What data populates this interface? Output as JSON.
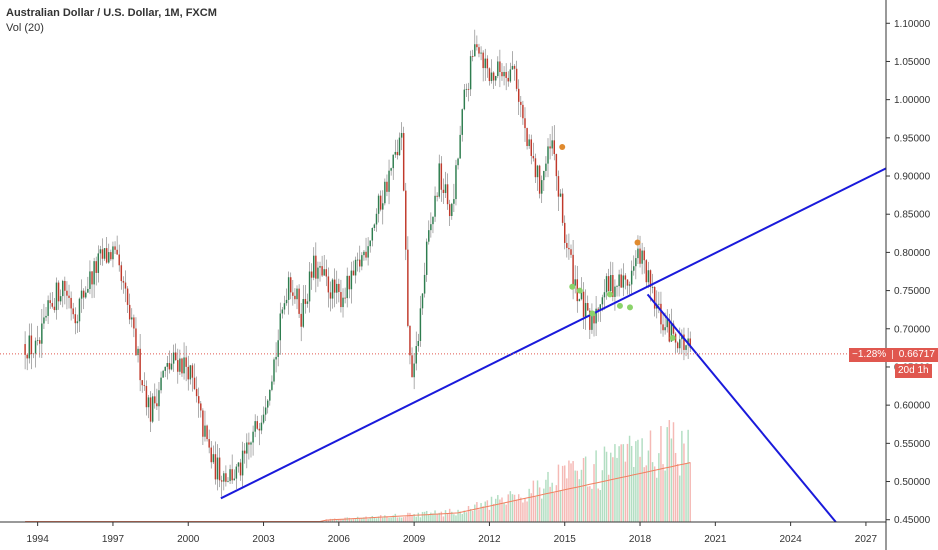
{
  "legend": {
    "title": "Australian Dollar / U.S. Dollar, 1M, FXCM",
    "indicator": "Vol (20)"
  },
  "price_tag": {
    "change": "−1.28%",
    "price": "0.66717",
    "countdown": "20d 1h"
  },
  "colors": {
    "up": "#2e7d4f",
    "down": "#c0392b",
    "trendline": "#1a1adb",
    "price_line": "#e0574f",
    "vol_ma": "#f08060",
    "vol_up": "#9fd6b3",
    "vol_down": "#f2a7a3"
  },
  "chart_data": {
    "type": "line",
    "title": "Australian Dollar / U.S. Dollar, 1M, FXCM",
    "x_tick_labels": [
      "1994",
      "1997",
      "2000",
      "2003",
      "2006",
      "2009",
      "2012",
      "2015",
      "2018",
      "2021",
      "2024",
      "2027"
    ],
    "y_tick_labels": [
      "0.45000",
      "0.50000",
      "0.55000",
      "0.60000",
      "0.65000",
      "0.70000",
      "0.75000",
      "0.80000",
      "0.85000",
      "0.90000",
      "0.95000",
      "1.00000",
      "1.05000",
      "1.10000"
    ],
    "xlim": [
      1992.5,
      2027.8
    ],
    "ylim": [
      0.447,
      1.12
    ],
    "grid": false,
    "series": [
      {
        "values": [
          [
            1993.5,
            0.68
          ],
          [
            1994.0,
            0.67
          ],
          [
            1994.5,
            0.73
          ],
          [
            1995.0,
            0.76
          ],
          [
            1995.5,
            0.72
          ],
          [
            1996.0,
            0.76
          ],
          [
            1996.5,
            0.79
          ],
          [
            1997.0,
            0.8
          ],
          [
            1997.5,
            0.74
          ],
          [
            1998.0,
            0.66
          ],
          [
            1998.5,
            0.59
          ],
          [
            1999.0,
            0.64
          ],
          [
            1999.5,
            0.66
          ],
          [
            2000.0,
            0.65
          ],
          [
            2000.5,
            0.58
          ],
          [
            2001.0,
            0.52
          ],
          [
            2001.5,
            0.51
          ],
          [
            2002.0,
            0.51
          ],
          [
            2002.5,
            0.55
          ],
          [
            2003.0,
            0.6
          ],
          [
            2003.5,
            0.67
          ],
          [
            2004.0,
            0.77
          ],
          [
            2004.5,
            0.72
          ],
          [
            2005.0,
            0.78
          ],
          [
            2005.5,
            0.76
          ],
          [
            2006.0,
            0.74
          ],
          [
            2006.5,
            0.76
          ],
          [
            2007.0,
            0.8
          ],
          [
            2007.5,
            0.85
          ],
          [
            2008.0,
            0.9
          ],
          [
            2008.5,
            0.95
          ],
          [
            2008.8,
            0.66
          ],
          [
            2009.0,
            0.64
          ],
          [
            2009.5,
            0.8
          ],
          [
            2010.0,
            0.9
          ],
          [
            2010.5,
            0.85
          ],
          [
            2011.0,
            1.0
          ],
          [
            2011.5,
            1.08
          ],
          [
            2012.0,
            1.03
          ],
          [
            2012.5,
            1.04
          ],
          [
            2013.0,
            1.04
          ],
          [
            2013.5,
            0.94
          ],
          [
            2014.0,
            0.89
          ],
          [
            2014.5,
            0.94
          ],
          [
            2015.0,
            0.82
          ],
          [
            2015.5,
            0.75
          ],
          [
            2016.0,
            0.7
          ],
          [
            2016.5,
            0.75
          ],
          [
            2017.0,
            0.76
          ],
          [
            2017.5,
            0.76
          ],
          [
            2018.0,
            0.8
          ],
          [
            2018.5,
            0.74
          ],
          [
            2019.0,
            0.7
          ],
          [
            2019.5,
            0.69
          ],
          [
            2020.0,
            0.67
          ]
        ]
      }
    ],
    "trendlines": [
      {
        "from": [
          2001.3,
          0.478
        ],
        "to": [
          2027.8,
          0.91
        ]
      },
      {
        "from": [
          2018.3,
          0.745
        ],
        "to": [
          2025.8,
          0.447
        ]
      }
    ],
    "markers": [
      {
        "x": 2014.9,
        "y": 0.938,
        "color": "#e08a2e"
      },
      {
        "x": 2017.9,
        "y": 0.813,
        "color": "#e08a2e"
      },
      {
        "x": 2015.3,
        "y": 0.755,
        "color": "#8bd36a"
      },
      {
        "x": 2015.6,
        "y": 0.75,
        "color": "#8bd36a"
      },
      {
        "x": 2016.1,
        "y": 0.72,
        "color": "#8bd36a"
      },
      {
        "x": 2016.8,
        "y": 0.745,
        "color": "#8bd36a"
      },
      {
        "x": 2017.2,
        "y": 0.73,
        "color": "#8bd36a"
      },
      {
        "x": 2017.6,
        "y": 0.728,
        "color": "#8bd36a"
      },
      {
        "x": 2019.3,
        "y": 0.688,
        "color": "#8bd36a"
      }
    ],
    "current_price": 0.66717
  }
}
